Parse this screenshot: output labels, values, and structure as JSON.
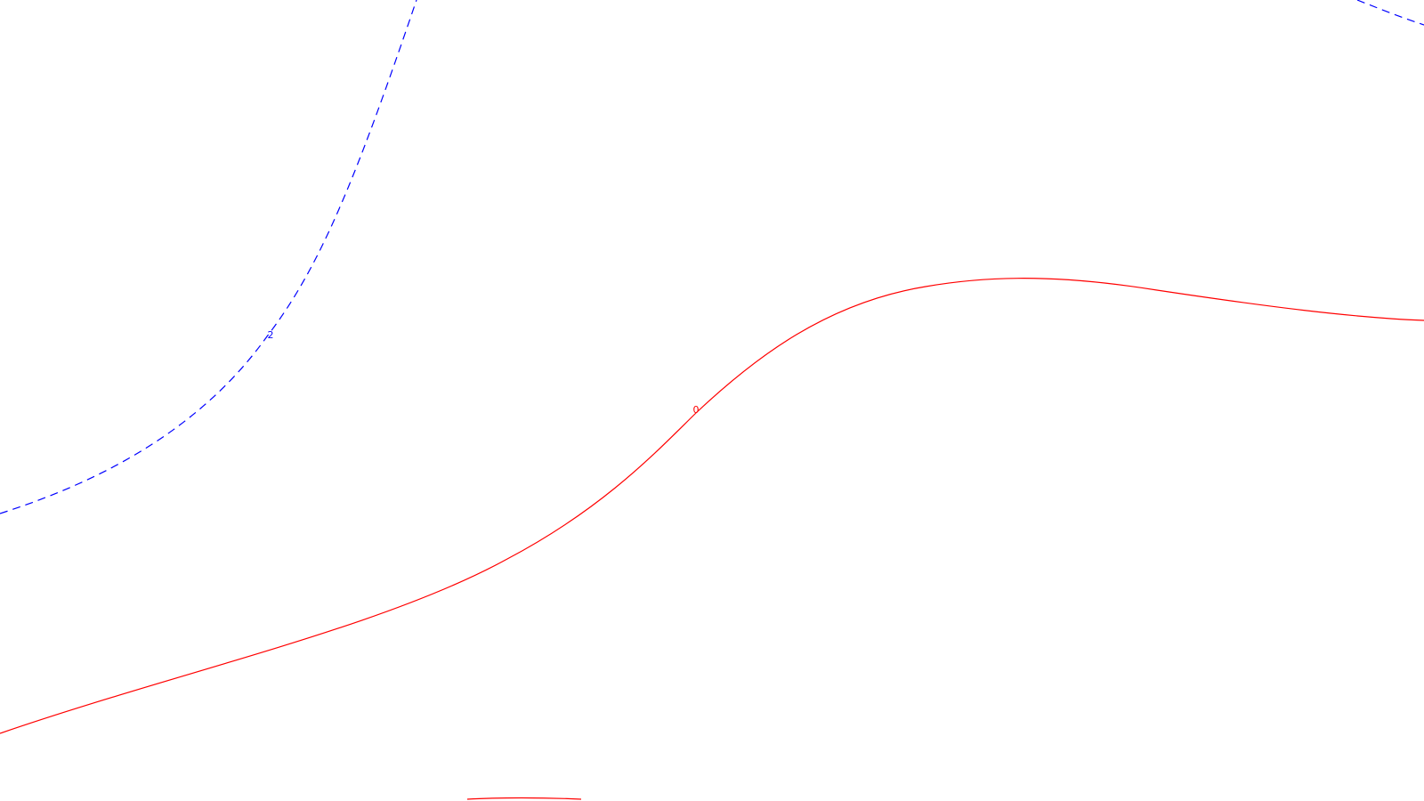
{
  "chart_data": {
    "type": "contour",
    "title": "",
    "xlabel": "",
    "ylabel": "",
    "grid": false,
    "legend": "none",
    "series": [
      {
        "label": "0",
        "color": "#ff0000",
        "style": "solid"
      },
      {
        "label": "2",
        "color": "#0000ff",
        "style": "dashed"
      }
    ]
  }
}
